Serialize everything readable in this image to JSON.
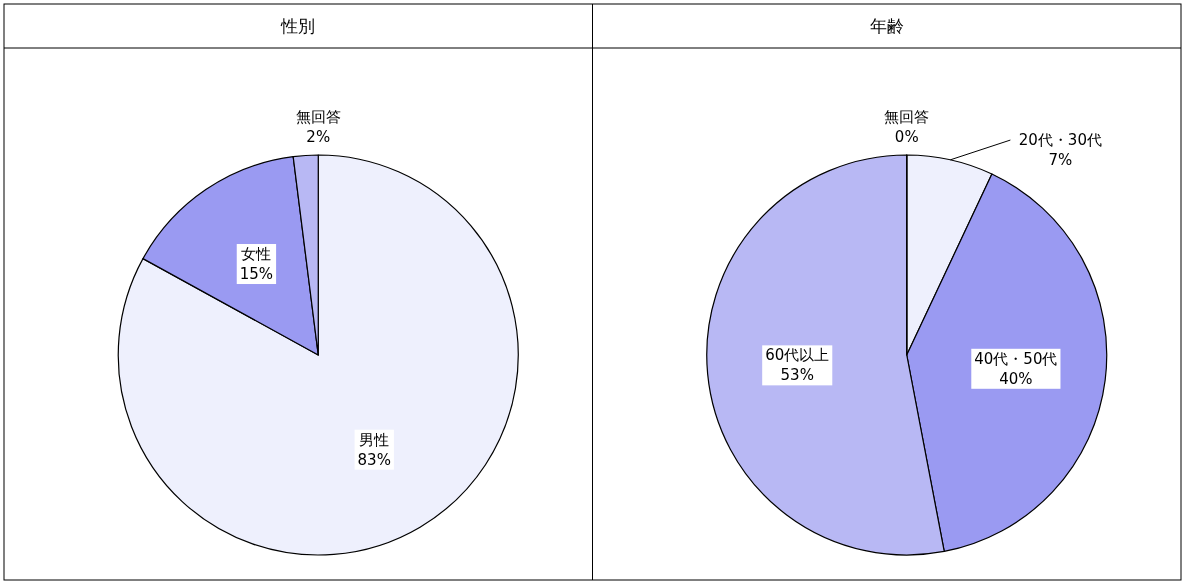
{
  "chart_data": [
    {
      "type": "pie",
      "title": "性別",
      "categories": [
        "男性",
        "女性",
        "無回答"
      ],
      "values": [
        83,
        15,
        2
      ],
      "colors": [
        "#eef0fd",
        "#9a9af2",
        "#b8b8f4"
      ],
      "value_labels": [
        "83%",
        "15%",
        "2%"
      ]
    },
    {
      "type": "pie",
      "title": "年齢",
      "categories": [
        "20代・30代",
        "40代・50代",
        "60代以上",
        "無回答"
      ],
      "values": [
        7,
        40,
        53,
        0
      ],
      "colors": [
        "#eef0fd",
        "#9a9af2",
        "#b8b8f4",
        "#b8b8f4"
      ],
      "value_labels": [
        "7%",
        "40%",
        "53%",
        "0%"
      ]
    }
  ]
}
